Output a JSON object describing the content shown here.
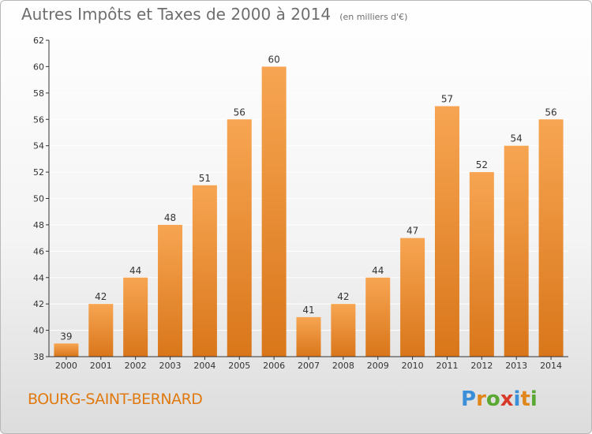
{
  "colors": {
    "bar_light": "#f7a552",
    "bar_dark": "#d9761a",
    "axis": "#333333",
    "grid": "#ffffff",
    "text": "#333333",
    "commune": "#e07a10"
  },
  "header": {
    "title": "Autres Impôts et Taxes de 2000 à 2014",
    "unit": "(en milliers d'€)"
  },
  "footer": {
    "commune": "BOURG-SAINT-BERNARD",
    "logo_letters": [
      "P",
      "r",
      "o",
      "x",
      "i",
      "t",
      "i"
    ],
    "logo_colors": [
      "#3a8fd8",
      "#e0861a",
      "#5aa832",
      "#d83a2a",
      "#3a8fd8",
      "#e0861a",
      "#5aa832"
    ]
  },
  "chart_data": {
    "type": "bar",
    "categories": [
      "2000",
      "2001",
      "2002",
      "2003",
      "2004",
      "2005",
      "2006",
      "2007",
      "2008",
      "2009",
      "2010",
      "2011",
      "2012",
      "2013",
      "2014"
    ],
    "values": [
      39,
      42,
      44,
      48,
      51,
      56,
      60,
      41,
      42,
      44,
      47,
      57,
      52,
      54,
      56
    ],
    "ylim": [
      38,
      62
    ],
    "yticks": [
      38,
      40,
      42,
      44,
      46,
      48,
      50,
      52,
      54,
      56,
      58,
      60,
      62
    ],
    "grid": true,
    "data_labels": true
  }
}
